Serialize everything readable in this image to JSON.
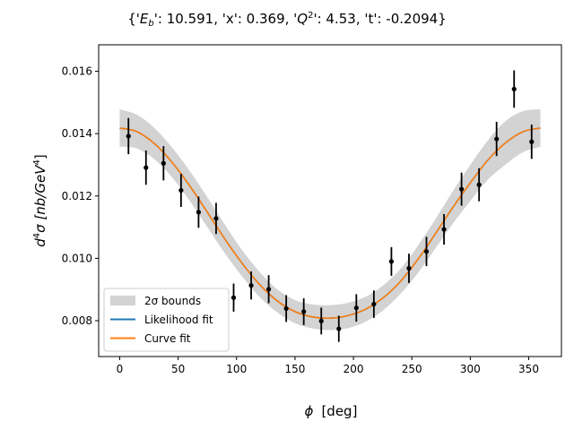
{
  "chart_data": {
    "type": "scatter",
    "title": "{'E_b': 10.591, 'x': 0.369, 'Q^2': 4.53, 't': -0.2094}",
    "title_parts": {
      "p1": "{'",
      "p2": "E",
      "p3": "b",
      "p4": "': 10.591, 'x': 0.369, '",
      "p5": "Q",
      "p6": "2",
      "p7": "': 4.53, 't': -0.2094}"
    },
    "xlabel": "ϕ  [deg]",
    "xlabel_parts": {
      "symbol": "ϕ",
      "unit": "[deg]"
    },
    "ylabel": "d^4σ [nb/GeV^4]",
    "ylabel_parts": {
      "d": "d",
      "exp1": "4",
      "sigma": "σ [nb/GeV",
      "exp2": "4",
      "close": "]"
    },
    "xlim": [
      -18,
      378
    ],
    "ylim": [
      0.00685,
      0.01685
    ],
    "xticks": [
      0,
      50,
      100,
      150,
      200,
      250,
      300,
      350
    ],
    "xtick_labels": [
      "0",
      "50",
      "100",
      "150",
      "200",
      "250",
      "300",
      "350"
    ],
    "yticks": [
      0.008,
      0.01,
      0.012,
      0.014,
      0.016
    ],
    "ytick_labels": [
      "0.008",
      "0.010",
      "0.012",
      "0.014",
      "0.016"
    ],
    "grid": false,
    "legend": {
      "placement": "lower-left",
      "entries": [
        {
          "label": "2σ bounds",
          "color": "#d3d3d3",
          "kind": "patch"
        },
        {
          "label": "Likelihood fit",
          "color": "#1f77b4",
          "kind": "line"
        },
        {
          "label": "Curve fit",
          "color": "#ff7f0e",
          "kind": "line"
        }
      ]
    },
    "data_points": {
      "phi": [
        7.5,
        22.5,
        37.5,
        52.5,
        67.5,
        82.5,
        97.5,
        112.5,
        127.5,
        142.5,
        157.5,
        172.5,
        187.5,
        202.5,
        217.5,
        232.5,
        247.5,
        262.5,
        277.5,
        292.5,
        307.5,
        322.5,
        337.5,
        352.5
      ],
      "value": [
        0.01392,
        0.01291,
        0.01305,
        0.01218,
        0.01148,
        0.01128,
        0.00874,
        0.00913,
        0.00901,
        0.00839,
        0.00829,
        0.00799,
        0.00774,
        0.00841,
        0.00853,
        0.0099,
        0.00968,
        0.01022,
        0.01093,
        0.01222,
        0.01236,
        0.01383,
        0.01543,
        0.01374
      ],
      "error": [
        0.00058,
        0.00055,
        0.00055,
        0.00053,
        0.0005,
        0.0005,
        0.00045,
        0.00045,
        0.00045,
        0.00043,
        0.00043,
        0.00043,
        0.00042,
        0.00044,
        0.00044,
        0.00046,
        0.00047,
        0.00047,
        0.00049,
        0.00053,
        0.00053,
        0.00055,
        0.0006,
        0.00055
      ],
      "color": "#000000"
    },
    "series": [
      {
        "name": "Likelihood fit",
        "color": "#1f77b4",
        "x": [
          0,
          15,
          30,
          45,
          60,
          75,
          90,
          105,
          120,
          135,
          150,
          165,
          180,
          195,
          210,
          225,
          240,
          255,
          270,
          285,
          300,
          315,
          330,
          345,
          360
        ],
        "values": [
          0.01418,
          0.01406,
          0.01367,
          0.01307,
          0.01232,
          0.01148,
          0.01062,
          0.00983,
          0.00915,
          0.00863,
          0.00829,
          0.00812,
          0.00808,
          0.00816,
          0.00836,
          0.00872,
          0.00925,
          0.00996,
          0.01078,
          0.01163,
          0.01242,
          0.01315,
          0.0137,
          0.01406,
          0.01418
        ]
      },
      {
        "name": "Curve fit",
        "color": "#ff7f0e",
        "x": [
          0,
          15,
          30,
          45,
          60,
          75,
          90,
          105,
          120,
          135,
          150,
          165,
          180,
          195,
          210,
          225,
          240,
          255,
          270,
          285,
          300,
          315,
          330,
          345,
          360
        ],
        "values": [
          0.01418,
          0.01406,
          0.01367,
          0.01307,
          0.01232,
          0.01148,
          0.01062,
          0.00983,
          0.00915,
          0.00863,
          0.00829,
          0.00812,
          0.00808,
          0.00816,
          0.00836,
          0.00872,
          0.00925,
          0.00996,
          0.01078,
          0.01163,
          0.01242,
          0.01315,
          0.0137,
          0.01406,
          0.01418
        ]
      }
    ],
    "band": {
      "name": "2σ bounds",
      "color": "#d3d3d3",
      "x": [
        0,
        15,
        30,
        45,
        60,
        75,
        90,
        105,
        120,
        135,
        150,
        165,
        180,
        195,
        210,
        225,
        240,
        255,
        270,
        285,
        300,
        315,
        330,
        345,
        360
      ],
      "upper": [
        0.01478,
        0.0146,
        0.01417,
        0.01355,
        0.0128,
        0.01196,
        0.01108,
        0.01025,
        0.00955,
        0.009,
        0.00866,
        0.00852,
        0.0085,
        0.00857,
        0.00876,
        0.00912,
        0.00965,
        0.0104,
        0.01125,
        0.01215,
        0.013,
        0.01378,
        0.0144,
        0.01472,
        0.01478
      ],
      "lower": [
        0.01358,
        0.01352,
        0.01317,
        0.01259,
        0.01184,
        0.011,
        0.01016,
        0.00941,
        0.00875,
        0.00826,
        0.00792,
        0.00775,
        0.0077,
        0.00776,
        0.00796,
        0.00832,
        0.00885,
        0.00952,
        0.01031,
        0.01111,
        0.01184,
        0.01252,
        0.013,
        0.0134,
        0.01358
      ]
    }
  }
}
